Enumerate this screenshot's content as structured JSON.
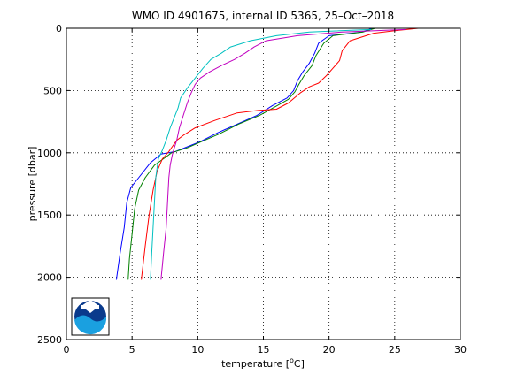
{
  "chart_data": {
    "type": "line",
    "title": "WMO ID 4901675, internal ID 5365, 25–Oct–2018",
    "xlabel_prefix": "temperature [",
    "xlabel_sup": "o",
    "xlabel_suffix": "C]",
    "ylabel": "pressure [dbar]",
    "xlim": [
      0,
      30
    ],
    "ylim": [
      0,
      2500
    ],
    "y_reversed": true,
    "xticks": [
      0,
      5,
      10,
      15,
      20,
      25,
      30
    ],
    "yticks": [
      0,
      500,
      1000,
      1500,
      2000,
      2500
    ],
    "grid": true,
    "logo": "noaa-logo",
    "series": [
      {
        "color": "#0000ff",
        "points": [
          [
            23.3,
            0
          ],
          [
            22.5,
            30
          ],
          [
            20.0,
            60
          ],
          [
            19.2,
            120
          ],
          [
            18.9,
            200
          ],
          [
            18.5,
            280
          ],
          [
            18.0,
            350
          ],
          [
            17.6,
            420
          ],
          [
            17.3,
            500
          ],
          [
            16.8,
            560
          ],
          [
            15.7,
            620
          ],
          [
            14.5,
            700
          ],
          [
            13.0,
            770
          ],
          [
            11.5,
            840
          ],
          [
            10.2,
            910
          ],
          [
            9.0,
            960
          ],
          [
            8.3,
            990
          ],
          [
            7.2,
            1010
          ],
          [
            6.4,
            1080
          ],
          [
            5.5,
            1200
          ],
          [
            4.9,
            1280
          ],
          [
            4.6,
            1400
          ],
          [
            4.4,
            1600
          ],
          [
            4.1,
            1800
          ],
          [
            3.8,
            2020
          ]
        ]
      },
      {
        "color": "#008000",
        "points": [
          [
            23.5,
            0
          ],
          [
            22.6,
            30
          ],
          [
            20.3,
            60
          ],
          [
            19.6,
            120
          ],
          [
            19.0,
            220
          ],
          [
            18.7,
            300
          ],
          [
            18.1,
            380
          ],
          [
            17.7,
            450
          ],
          [
            17.4,
            510
          ],
          [
            16.9,
            570
          ],
          [
            15.9,
            630
          ],
          [
            14.7,
            700
          ],
          [
            13.1,
            770
          ],
          [
            11.6,
            850
          ],
          [
            10.3,
            910
          ],
          [
            9.2,
            960
          ],
          [
            8.0,
            1000
          ],
          [
            7.5,
            1040
          ],
          [
            6.7,
            1100
          ],
          [
            6.0,
            1200
          ],
          [
            5.5,
            1300
          ],
          [
            5.2,
            1450
          ],
          [
            5.0,
            1650
          ],
          [
            4.8,
            1850
          ],
          [
            4.7,
            2020
          ]
        ]
      },
      {
        "color": "#ff0000",
        "points": [
          [
            26.8,
            0
          ],
          [
            25.0,
            20
          ],
          [
            23.4,
            40
          ],
          [
            21.6,
            100
          ],
          [
            21.0,
            180
          ],
          [
            20.8,
            260
          ],
          [
            20.3,
            320
          ],
          [
            19.8,
            380
          ],
          [
            19.2,
            440
          ],
          [
            18.5,
            470
          ],
          [
            17.8,
            520
          ],
          [
            16.9,
            600
          ],
          [
            16.0,
            650
          ],
          [
            14.6,
            660
          ],
          [
            13.0,
            680
          ],
          [
            11.3,
            740
          ],
          [
            9.8,
            800
          ],
          [
            8.9,
            860
          ],
          [
            8.4,
            900
          ],
          [
            7.8,
            990
          ],
          [
            7.3,
            1050
          ],
          [
            6.9,
            1150
          ],
          [
            6.6,
            1300
          ],
          [
            6.3,
            1500
          ],
          [
            6.0,
            1750
          ],
          [
            5.7,
            2020
          ]
        ]
      },
      {
        "color": "#00c0c0",
        "points": [
          [
            23.2,
            10
          ],
          [
            18.5,
            30
          ],
          [
            16.0,
            60
          ],
          [
            14.0,
            100
          ],
          [
            12.5,
            150
          ],
          [
            11.8,
            200
          ],
          [
            11.0,
            250
          ],
          [
            10.4,
            320
          ],
          [
            9.8,
            400
          ],
          [
            9.2,
            480
          ],
          [
            8.7,
            560
          ],
          [
            8.5,
            640
          ],
          [
            8.2,
            720
          ],
          [
            7.9,
            800
          ],
          [
            7.6,
            900
          ],
          [
            7.3,
            980
          ],
          [
            7.0,
            1050
          ],
          [
            6.8,
            1200
          ],
          [
            6.7,
            1400
          ],
          [
            6.6,
            1600
          ],
          [
            6.5,
            1800
          ],
          [
            6.4,
            2020
          ]
        ]
      },
      {
        "color": "#c000c0",
        "points": [
          [
            25.8,
            10
          ],
          [
            21.0,
            30
          ],
          [
            17.6,
            60
          ],
          [
            15.2,
            100
          ],
          [
            14.3,
            150
          ],
          [
            13.6,
            200
          ],
          [
            12.8,
            250
          ],
          [
            11.8,
            300
          ],
          [
            10.9,
            350
          ],
          [
            10.2,
            400
          ],
          [
            9.8,
            450
          ],
          [
            9.5,
            520
          ],
          [
            9.2,
            600
          ],
          [
            8.9,
            700
          ],
          [
            8.6,
            800
          ],
          [
            8.4,
            900
          ],
          [
            8.1,
            1000
          ],
          [
            7.9,
            1100
          ],
          [
            7.8,
            1200
          ],
          [
            7.7,
            1400
          ],
          [
            7.6,
            1600
          ],
          [
            7.4,
            1800
          ],
          [
            7.2,
            2020
          ]
        ]
      }
    ]
  }
}
